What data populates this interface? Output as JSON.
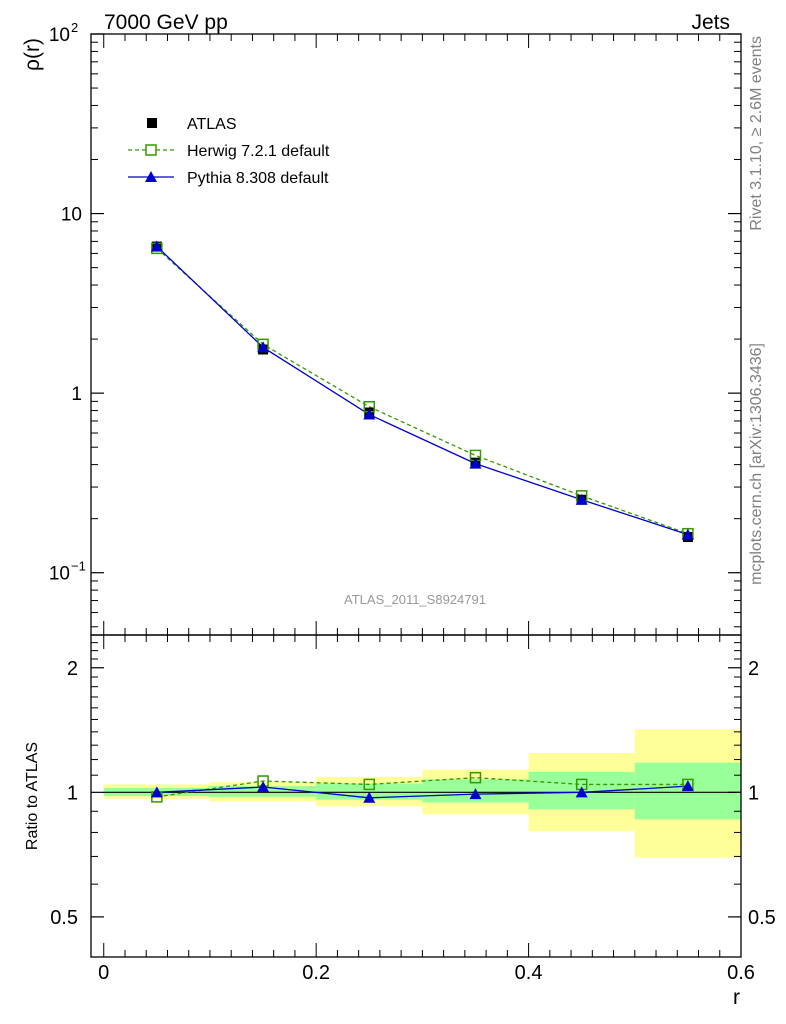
{
  "header": {
    "left": "7000 GeV pp",
    "right": "Jets"
  },
  "side_text": {
    "rivet": "Rivet 3.1.10, ≥ 2.6M events",
    "source": "mcplots.cern.ch [arXiv:1306.3436]"
  },
  "analysis_label": "ATLAS_2011_S8924791",
  "colors": {
    "data": "#000000",
    "herwig": "#339900",
    "pythia": "#0000cc",
    "band_outer": "#ffff99",
    "band_inner": "#99ff99",
    "analysis_label": "#999999",
    "side_text": "#808080"
  },
  "chart_data": [
    {
      "type": "line",
      "panel": "main",
      "ylabel": "ρ(r)",
      "yscale": "log",
      "xlim": [
        -0.012,
        0.6
      ],
      "ylim": [
        0.045,
        100
      ],
      "grid": false,
      "legend_position": "top-left",
      "y_ticks": [
        {
          "value": 100,
          "base": "10",
          "exp": "2"
        },
        {
          "value": 10,
          "base": "10",
          "exp": ""
        },
        {
          "value": 1,
          "base": "1",
          "exp": ""
        },
        {
          "value": 0.1,
          "base": "10",
          "exp": "−1"
        }
      ],
      "x": [
        0.05,
        0.15,
        0.25,
        0.35,
        0.45,
        0.55
      ],
      "series": [
        {
          "name": "ATLAS",
          "marker": "square-filled",
          "line": "none",
          "values": [
            6.55,
            1.75,
            0.78,
            0.41,
            0.255,
            0.158
          ]
        },
        {
          "name": "Herwig 7.2.1 default",
          "marker": "square-open",
          "line": "dashed",
          "values": [
            6.4,
            1.87,
            0.84,
            0.45,
            0.268,
            0.165
          ]
        },
        {
          "name": "Pythia 8.308 default",
          "marker": "triangle-filled",
          "line": "solid",
          "values": [
            6.56,
            1.8,
            0.76,
            0.405,
            0.255,
            0.163
          ]
        }
      ]
    },
    {
      "type": "line",
      "panel": "ratio",
      "xlabel": "r",
      "ylabel": "Ratio to ATLAS",
      "yscale": "log",
      "xlim": [
        -0.012,
        0.6
      ],
      "ylim": [
        0.4,
        2.4
      ],
      "grid": false,
      "x_ticks": [
        "0",
        "0.2",
        "0.4",
        "0.6"
      ],
      "y_ticks": [
        "0.5",
        "1",
        "2"
      ],
      "bins": [
        [
          0.0,
          0.1
        ],
        [
          0.1,
          0.2
        ],
        [
          0.2,
          0.3
        ],
        [
          0.3,
          0.4
        ],
        [
          0.4,
          0.5
        ],
        [
          0.5,
          0.6
        ]
      ],
      "band_total": [
        [
          0.965,
          1.045
        ],
        [
          0.95,
          1.06
        ],
        [
          0.925,
          1.09
        ],
        [
          0.885,
          1.135
        ],
        [
          0.805,
          1.245
        ],
        [
          0.695,
          1.42
        ]
      ],
      "band_stat": [
        [
          0.98,
          1.025
        ],
        [
          0.975,
          1.035
        ],
        [
          0.96,
          1.05
        ],
        [
          0.945,
          1.075
        ],
        [
          0.91,
          1.12
        ],
        [
          0.86,
          1.18
        ]
      ],
      "x": [
        0.05,
        0.15,
        0.25,
        0.35,
        0.45,
        0.55
      ],
      "series": [
        {
          "name": "Herwig 7.2.1 default",
          "values": [
            0.975,
            1.065,
            1.045,
            1.085,
            1.045,
            1.045
          ]
        },
        {
          "name": "Pythia 8.308 default",
          "values": [
            1.0,
            1.03,
            0.97,
            0.99,
            1.0,
            1.035
          ]
        }
      ]
    }
  ]
}
